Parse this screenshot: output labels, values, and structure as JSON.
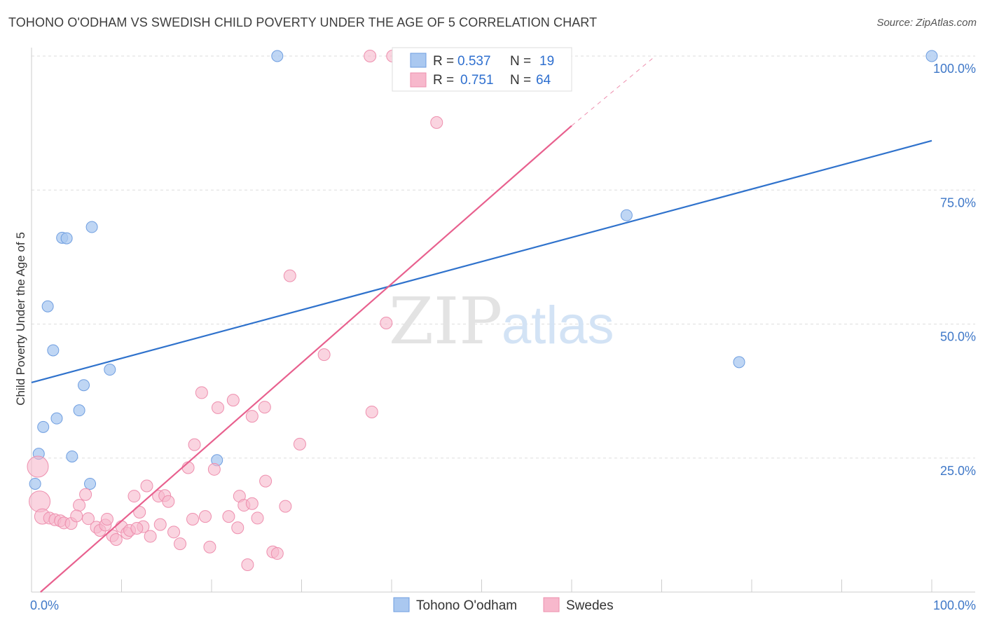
{
  "title": "TOHONO O'ODHAM VS SWEDISH CHILD POVERTY UNDER THE AGE OF 5 CORRELATION CHART",
  "source": "Source: ZipAtlas.com",
  "watermark": {
    "zip": "ZIP",
    "atlas": "atlas"
  },
  "colors": {
    "blue_fill": "#aac8f0",
    "blue_stroke": "#6f9ee0",
    "blue_line": "#2f72cc",
    "pink_fill": "#f7b8cc",
    "pink_stroke": "#ee8fae",
    "pink_line": "#e8608e",
    "grid": "#dddddd",
    "tick_text": "#3f78c8"
  },
  "legend": {
    "r_label": "R =",
    "n_label": "N =",
    "rows": [
      {
        "series": "Tohono O'odham",
        "r": "0.537",
        "n": "19"
      },
      {
        "series": "Swedes",
        "r": "0.751",
        "n": "64"
      }
    ]
  },
  "chart_data": {
    "type": "scatter",
    "title": "TOHONO O'ODHAM VS SWEDISH CHILD POVERTY UNDER THE AGE OF 5 CORRELATION CHART",
    "xlabel": "",
    "ylabel": "Child Poverty Under the Age of 5",
    "xlim": [
      0,
      100
    ],
    "ylim": [
      0,
      100
    ],
    "x_tick_labels": [
      "0.0%",
      "100.0%"
    ],
    "y_ticks": [
      25,
      50,
      75,
      100
    ],
    "y_tick_labels": [
      "25.0%",
      "50.0%",
      "75.0%",
      "100.0%"
    ],
    "grid": true,
    "legend_position": "top-center",
    "series": [
      {
        "name": "Tohono O'odham",
        "color": "#aac8f0",
        "trend": {
          "x": [
            0,
            100
          ],
          "y": [
            39.1,
            84.2
          ]
        },
        "points": [
          {
            "x": 27.3,
            "y": 100
          },
          {
            "x": 100,
            "y": 100
          },
          {
            "x": 66.1,
            "y": 70.3
          },
          {
            "x": 3.4,
            "y": 66.1
          },
          {
            "x": 3.9,
            "y": 66.0
          },
          {
            "x": 6.7,
            "y": 68.1
          },
          {
            "x": 1.8,
            "y": 53.3
          },
          {
            "x": 2.4,
            "y": 45.1
          },
          {
            "x": 8.7,
            "y": 41.5
          },
          {
            "x": 5.8,
            "y": 38.6
          },
          {
            "x": 5.3,
            "y": 33.9
          },
          {
            "x": 2.8,
            "y": 32.4
          },
          {
            "x": 1.3,
            "y": 30.8
          },
          {
            "x": 0.8,
            "y": 25.8
          },
          {
            "x": 4.5,
            "y": 25.3
          },
          {
            "x": 20.6,
            "y": 24.6
          },
          {
            "x": 0.4,
            "y": 20.2
          },
          {
            "x": 6.5,
            "y": 20.2
          },
          {
            "x": 78.6,
            "y": 42.9
          }
        ]
      },
      {
        "name": "Swedes",
        "color": "#f7b8cc",
        "trend": {
          "x": [
            1,
            60
          ],
          "y": [
            0,
            87.0
          ],
          "dashed_to": {
            "x": 69.3,
            "y": 100
          }
        },
        "points": [
          {
            "x": 37.6,
            "y": 100
          },
          {
            "x": 40.1,
            "y": 100
          },
          {
            "x": 53.4,
            "y": 100
          },
          {
            "x": 45.0,
            "y": 87.6
          },
          {
            "x": 28.7,
            "y": 59.0
          },
          {
            "x": 39.4,
            "y": 50.2
          },
          {
            "x": 32.5,
            "y": 44.3
          },
          {
            "x": 37.8,
            "y": 33.6
          },
          {
            "x": 18.9,
            "y": 37.2
          },
          {
            "x": 22.4,
            "y": 35.8
          },
          {
            "x": 20.7,
            "y": 34.4
          },
          {
            "x": 25.9,
            "y": 34.5
          },
          {
            "x": 24.5,
            "y": 32.8
          },
          {
            "x": 29.8,
            "y": 27.6
          },
          {
            "x": 18.1,
            "y": 27.5
          },
          {
            "x": 20.3,
            "y": 22.9
          },
          {
            "x": 17.4,
            "y": 23.2
          },
          {
            "x": 26.0,
            "y": 20.7
          },
          {
            "x": 12.8,
            "y": 19.8
          },
          {
            "x": 11.4,
            "y": 17.9
          },
          {
            "x": 14.1,
            "y": 17.9
          },
          {
            "x": 14.8,
            "y": 18.0
          },
          {
            "x": 15.2,
            "y": 16.9
          },
          {
            "x": 23.1,
            "y": 17.9
          },
          {
            "x": 23.6,
            "y": 16.2
          },
          {
            "x": 24.5,
            "y": 16.5
          },
          {
            "x": 28.2,
            "y": 16.0
          },
          {
            "x": 6.0,
            "y": 18.2
          },
          {
            "x": 5.3,
            "y": 16.2
          },
          {
            "x": 12.0,
            "y": 14.9
          },
          {
            "x": 0.7,
            "y": 23.4
          },
          {
            "x": 0.9,
            "y": 16.9
          },
          {
            "x": 1.2,
            "y": 14.1
          },
          {
            "x": 2.0,
            "y": 13.8
          },
          {
            "x": 2.6,
            "y": 13.5
          },
          {
            "x": 3.2,
            "y": 13.3
          },
          {
            "x": 3.6,
            "y": 12.9
          },
          {
            "x": 4.4,
            "y": 12.8
          },
          {
            "x": 6.3,
            "y": 13.7
          },
          {
            "x": 5.0,
            "y": 14.2
          },
          {
            "x": 7.2,
            "y": 12.1
          },
          {
            "x": 7.6,
            "y": 11.5
          },
          {
            "x": 8.2,
            "y": 12.5
          },
          {
            "x": 8.4,
            "y": 13.6
          },
          {
            "x": 9.0,
            "y": 10.5
          },
          {
            "x": 9.4,
            "y": 9.8
          },
          {
            "x": 10.0,
            "y": 12.2
          },
          {
            "x": 10.6,
            "y": 11.0
          },
          {
            "x": 10.9,
            "y": 11.5
          },
          {
            "x": 12.4,
            "y": 12.2
          },
          {
            "x": 13.2,
            "y": 10.4
          },
          {
            "x": 14.3,
            "y": 12.6
          },
          {
            "x": 15.8,
            "y": 11.2
          },
          {
            "x": 16.5,
            "y": 9.0
          },
          {
            "x": 17.9,
            "y": 13.6
          },
          {
            "x": 19.3,
            "y": 14.1
          },
          {
            "x": 19.8,
            "y": 8.4
          },
          {
            "x": 21.9,
            "y": 14.1
          },
          {
            "x": 22.9,
            "y": 12.0
          },
          {
            "x": 24.0,
            "y": 5.1
          },
          {
            "x": 26.8,
            "y": 7.5
          },
          {
            "x": 27.3,
            "y": 7.2
          },
          {
            "x": 25.1,
            "y": 13.8
          },
          {
            "x": 11.7,
            "y": 11.9
          }
        ]
      }
    ]
  },
  "bottom_legend": [
    "Tohono O'odham",
    "Swedes"
  ]
}
